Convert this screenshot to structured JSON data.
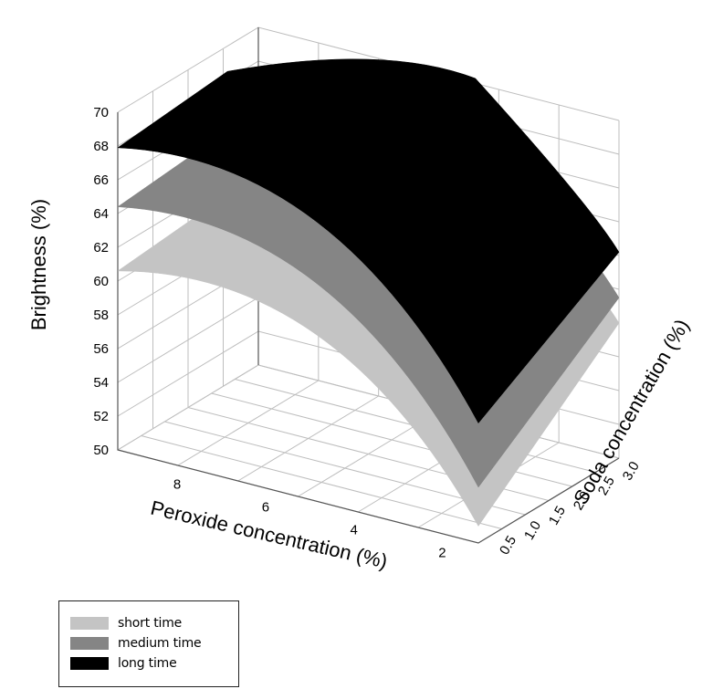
{
  "chart_data": {
    "type": "surface3d",
    "zlabel": "Brightness (%)",
    "xlabel": "Peroxide concentration (%)",
    "ylabel": "Soda concentration (%)",
    "z_ticks": [
      "50",
      "52",
      "54",
      "56",
      "58",
      "60",
      "62",
      "64",
      "66",
      "68",
      "70"
    ],
    "x_ticks": [
      "8",
      "6",
      "4",
      "2"
    ],
    "y_ticks": [
      "0.5",
      "1.0",
      "1.5",
      "2.0",
      "2.5",
      "3.0"
    ],
    "zlim": [
      50,
      70
    ],
    "series": [
      {
        "name": "short time",
        "color": "#c4c4c4",
        "corner_values": {
          "left_back": 61.2,
          "apex_back": 65.3,
          "right_back": 58.0,
          "front_min": 51.0
        }
      },
      {
        "name": "medium time",
        "color": "#858585",
        "corner_values": {
          "left_back": 65.0,
          "apex_back": 68.3,
          "right_back": 59.5,
          "front_min": 53.3
        }
      },
      {
        "name": "long time",
        "color": "#000000",
        "corner_values": {
          "left_back": 68.5,
          "apex_back": 70.0,
          "right_back": 62.2,
          "front_min": 57.1
        }
      }
    ]
  },
  "legend": {
    "items": [
      {
        "label": "short time",
        "color": "#c4c4c4"
      },
      {
        "label": "medium time",
        "color": "#858585"
      },
      {
        "label": "long time",
        "color": "#000000"
      }
    ]
  }
}
